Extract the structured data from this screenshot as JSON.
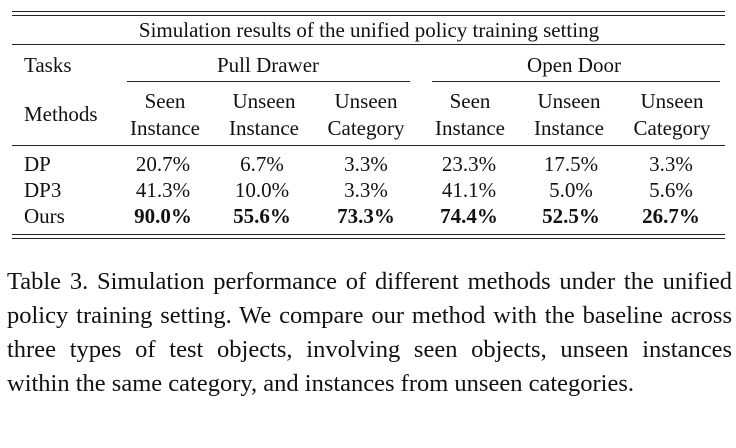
{
  "table": {
    "title": "Simulation results of the unified policy training setting",
    "tasks_label": "Tasks",
    "methods_label": "Methods",
    "task_groups": [
      "Pull Drawer",
      "Open Door"
    ],
    "columns": [
      [
        "Seen",
        "Instance"
      ],
      [
        "Unseen",
        "Instance"
      ],
      [
        "Unseen",
        "Category"
      ],
      [
        "Seen",
        "Instance"
      ],
      [
        "Unseen",
        "Instance"
      ],
      [
        "Unseen",
        "Category"
      ]
    ],
    "rows": [
      {
        "method": "DP",
        "values": [
          "20.7%",
          "6.7%",
          "3.3%",
          "23.3%",
          "17.5%",
          "3.3%"
        ],
        "bold": false
      },
      {
        "method": "DP3",
        "values": [
          "41.3%",
          "10.0%",
          "3.3%",
          "41.1%",
          "5.0%",
          "5.6%"
        ],
        "bold": false
      },
      {
        "method": "Ours",
        "values": [
          "90.0%",
          "55.6%",
          "73.3%",
          "74.4%",
          "52.5%",
          "26.7%"
        ],
        "bold": true
      }
    ]
  },
  "caption": "Table 3. Simulation performance of different methods under the unified policy training setting. We compare our method with the baseline across three types of test objects, involving seen objects, unseen instances within the same category, and instances from unseen categories."
}
